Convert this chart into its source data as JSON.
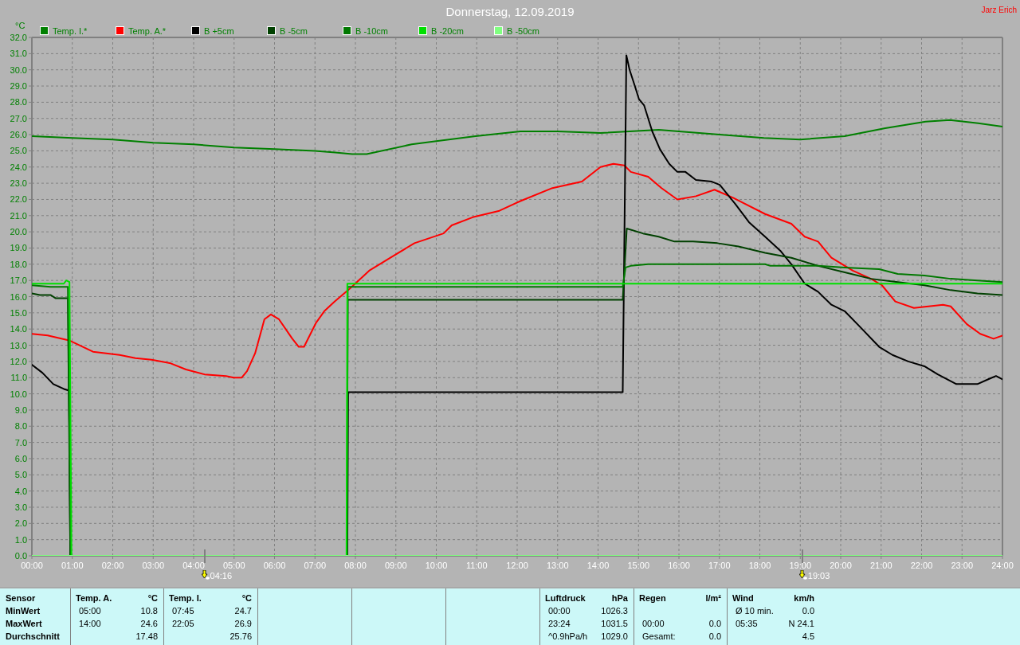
{
  "chart_data": [
    {
      "type": "line",
      "title": "Donnerstag, 12.09.2019",
      "ylabel": "°C",
      "annotations": [
        "Jarz Erich",
        "04:16",
        "19:03"
      ],
      "xlim": [
        0,
        24
      ],
      "xticks": [
        {
          "value": 0,
          "label": "00:00"
        },
        {
          "value": 1,
          "label": "01:00"
        },
        {
          "value": 2,
          "label": "02:00"
        },
        {
          "value": 3,
          "label": "03:00"
        },
        {
          "value": 4,
          "label": "04:00"
        },
        {
          "value": 5,
          "label": "05:00"
        },
        {
          "value": 6,
          "label": "06:00"
        },
        {
          "value": 7,
          "label": "07:00"
        },
        {
          "value": 8,
          "label": "08:00"
        },
        {
          "value": 9,
          "label": "09:00"
        },
        {
          "value": 10,
          "label": "10:00"
        },
        {
          "value": 11,
          "label": "11:00"
        },
        {
          "value": 12,
          "label": "12:00"
        },
        {
          "value": 13,
          "label": "13:00"
        },
        {
          "value": 14,
          "label": "14:00"
        },
        {
          "value": 15,
          "label": "15:00"
        },
        {
          "value": 16,
          "label": "16:00"
        },
        {
          "value": 17,
          "label": "17:00"
        },
        {
          "value": 18,
          "label": "18:00"
        },
        {
          "value": 19,
          "label": "19:00"
        },
        {
          "value": 20,
          "label": "20:00"
        },
        {
          "value": 21,
          "label": "21:00"
        },
        {
          "value": 22,
          "label": "22:00"
        },
        {
          "value": 23,
          "label": "23:00"
        },
        {
          "value": 24,
          "label": "24:00"
        }
      ],
      "ylim": [
        0,
        32
      ],
      "yticks": [
        {
          "value": 0,
          "label": "0.0"
        },
        {
          "value": 1,
          "label": "1.0"
        },
        {
          "value": 2,
          "label": "2.0"
        },
        {
          "value": 3,
          "label": "3.0"
        },
        {
          "value": 4,
          "label": "4.0"
        },
        {
          "value": 5,
          "label": "5.0"
        },
        {
          "value": 6,
          "label": "6.0"
        },
        {
          "value": 7,
          "label": "7.0"
        },
        {
          "value": 8,
          "label": "8.0"
        },
        {
          "value": 9,
          "label": "9.0"
        },
        {
          "value": 10,
          "label": "10.0"
        },
        {
          "value": 11,
          "label": "11.0"
        },
        {
          "value": 12,
          "label": "12.0"
        },
        {
          "value": 13,
          "label": "13.0"
        },
        {
          "value": 14,
          "label": "14.0"
        },
        {
          "value": 15,
          "label": "15.0"
        },
        {
          "value": 16,
          "label": "16.0"
        },
        {
          "value": 17,
          "label": "17.0"
        },
        {
          "value": 18,
          "label": "18.0"
        },
        {
          "value": 19,
          "label": "19.0"
        },
        {
          "value": 20,
          "label": "20.0"
        },
        {
          "value": 21,
          "label": "21.0"
        },
        {
          "value": 22,
          "label": "22.0"
        },
        {
          "value": 23,
          "label": "23.0"
        },
        {
          "value": 24,
          "label": "24.0"
        },
        {
          "value": 25,
          "label": "25.0"
        },
        {
          "value": 26,
          "label": "26.0"
        },
        {
          "value": 27,
          "label": "27.0"
        },
        {
          "value": 28,
          "label": "28.0"
        },
        {
          "value": 29,
          "label": "29.0"
        },
        {
          "value": 30,
          "label": "30.0"
        },
        {
          "value": 31,
          "label": "31.0"
        },
        {
          "value": 32,
          "label": "32.0"
        }
      ],
      "grid": true,
      "legend": "top",
      "line_style": "solid",
      "series": [
        {
          "name": "Temp. I.*",
          "color": "#008000",
          "x": [
            0,
            1,
            2,
            3,
            4,
            5,
            6,
            7,
            7.5,
            7.92,
            8.28,
            9.39,
            10,
            10.97,
            12.08,
            13,
            14.06,
            15.5,
            16,
            17,
            18.1,
            19,
            20.1,
            21.1,
            22.1,
            22.7,
            23.4,
            24
          ],
          "values": [
            25.9,
            25.8,
            25.7,
            25.5,
            25.4,
            25.2,
            25.1,
            25.0,
            24.9,
            24.8,
            24.8,
            25.4,
            25.6,
            25.9,
            26.2,
            26.2,
            26.1,
            26.3,
            26.2,
            26.0,
            25.8,
            25.7,
            25.9,
            26.4,
            26.8,
            26.9,
            26.7,
            26.5
          ]
        },
        {
          "name": "Temp. A.*",
          "color": "#ff0000",
          "x": [
            0,
            0.39,
            0.92,
            1.51,
            2.17,
            2.56,
            2.96,
            3.41,
            3.81,
            4.27,
            4.8,
            4.99,
            5.19,
            5.32,
            5.52,
            5.75,
            5.91,
            6.11,
            6.44,
            6.6,
            6.73,
            7.03,
            7.23,
            7.49,
            7.82,
            8.08,
            8.34,
            8.93,
            9.46,
            10.18,
            10.38,
            10.9,
            11.56,
            12.08,
            12.87,
            13.6,
            14.06,
            14.38,
            14.65,
            14.81,
            15.24,
            15.57,
            15.96,
            16.42,
            16.88,
            17.34,
            18.13,
            18.78,
            19.11,
            19.44,
            19.77,
            20.3,
            20.75,
            21.02,
            21.35,
            21.81,
            22.53,
            22.72,
            23.12,
            23.45,
            23.78,
            24
          ],
          "values": [
            13.7,
            13.6,
            13.3,
            12.6,
            12.4,
            12.2,
            12.1,
            11.9,
            11.5,
            11.2,
            11.1,
            11.0,
            11.0,
            11.4,
            12.5,
            14.6,
            14.9,
            14.6,
            13.4,
            12.9,
            12.9,
            14.4,
            15.1,
            15.7,
            16.4,
            17.0,
            17.6,
            18.5,
            19.3,
            19.9,
            20.4,
            20.9,
            21.3,
            21.9,
            22.7,
            23.1,
            24.0,
            24.2,
            24.1,
            23.7,
            23.4,
            22.7,
            22.0,
            22.2,
            22.6,
            22.1,
            21.1,
            20.5,
            19.7,
            19.4,
            18.4,
            17.6,
            17.1,
            16.7,
            15.7,
            15.3,
            15.5,
            15.4,
            14.3,
            13.7,
            13.4,
            13.6
          ]
        },
        {
          "name": "B +5cm",
          "color": "#000000",
          "x": [
            0,
            0.26,
            0.53,
            0.79,
            0.92,
            0.95,
            4,
            7.8,
            7.82,
            14.61,
            14.7,
            14.78,
            14.91,
            15.01,
            15.14,
            15.34,
            15.53,
            15.76,
            15.96,
            16.16,
            16.42,
            16.81,
            17.01,
            17.4,
            17.73,
            18.13,
            18.52,
            18.78,
            19.11,
            19.44,
            19.77,
            20.1,
            20.49,
            20.95,
            21.28,
            21.67,
            22.07,
            22.4,
            22.86,
            23.38,
            23.65,
            23.84,
            24
          ],
          "values": [
            11.8,
            11.3,
            10.6,
            10.3,
            10.2,
            0,
            null,
            0,
            10.1,
            10.1,
            30.9,
            30.0,
            29.0,
            28.2,
            27.8,
            26.2,
            25.1,
            24.2,
            23.7,
            23.7,
            23.2,
            23.1,
            22.9,
            21.7,
            20.6,
            19.7,
            18.8,
            18.0,
            16.8,
            16.3,
            15.5,
            15.1,
            14.1,
            12.9,
            12.4,
            12.0,
            11.7,
            11.2,
            10.6,
            10.6,
            10.9,
            11.1,
            10.9
          ]
        },
        {
          "name": "B -5cm",
          "color": "#004000",
          "x": [
            0,
            0.2,
            0.46,
            0.59,
            0.89,
            0.95,
            4,
            7.79,
            7.81,
            14.61,
            14.71,
            15.11,
            15.5,
            15.89,
            16.35,
            16.95,
            17.47,
            18.13,
            18.78,
            19.44,
            20.1,
            20.75,
            21.41,
            22.07,
            22.72,
            23.38,
            24
          ],
          "values": [
            16.2,
            16.1,
            16.1,
            15.9,
            15.9,
            0,
            null,
            0,
            15.8,
            15.8,
            20.2,
            19.9,
            19.7,
            19.4,
            19.4,
            19.3,
            19.1,
            18.7,
            18.4,
            17.9,
            17.5,
            17.1,
            16.9,
            16.7,
            16.4,
            16.2,
            16.1
          ]
        },
        {
          "name": "B -10cm",
          "color": "#007800",
          "x": [
            0,
            0.46,
            0.89,
            0.96,
            4,
            7.79,
            7.81,
            14.61,
            14.68,
            14.81,
            15.24,
            16.81,
            18.13,
            18.26,
            19.44,
            20.1,
            20.95,
            21.41,
            22.07,
            22.72,
            23.38,
            24
          ],
          "values": [
            16.7,
            16.6,
            16.6,
            0,
            null,
            0,
            16.6,
            16.6,
            17.8,
            17.9,
            18.0,
            18.0,
            18.0,
            17.9,
            17.9,
            17.8,
            17.7,
            17.4,
            17.3,
            17.1,
            17.0,
            16.9
          ]
        },
        {
          "name": "B -20cm",
          "color": "#00e000",
          "x": [
            0,
            0.79,
            0.85,
            0.93,
            0.98,
            4,
            7.78,
            7.8,
            24
          ],
          "values": [
            16.8,
            16.8,
            17.0,
            16.9,
            0,
            null,
            0,
            16.8,
            16.8
          ]
        },
        {
          "name": "B -50cm",
          "color": "#80ff80",
          "x": [
            0,
            24
          ],
          "values": [
            0,
            0
          ]
        }
      ]
    },
    {
      "type": "other",
      "annotations": [
        "Sensor",
        "MinWert",
        "MaxWert",
        "Durchschnitt",
        "Temp. A.",
        "°C",
        "05:00",
        "10.8",
        "14:00",
        "24.6",
        "17.48",
        "Temp. I.",
        "°C",
        "07:45",
        "24.7",
        "22:05",
        "26.9",
        "25.76",
        "Luftdruck",
        "hPa",
        "00:00",
        "1026.3",
        "23:24",
        "1031.5",
        "^0.9hPa/h",
        "1029.0",
        "Regen",
        "l/m²",
        "00:00",
        "0.0",
        "Gesamt:",
        "0.0",
        "Wind",
        "km/h",
        "Ø 10 min.",
        "0.0",
        "05:35",
        "N 24.1",
        "4.5"
      ]
    }
  ]
}
